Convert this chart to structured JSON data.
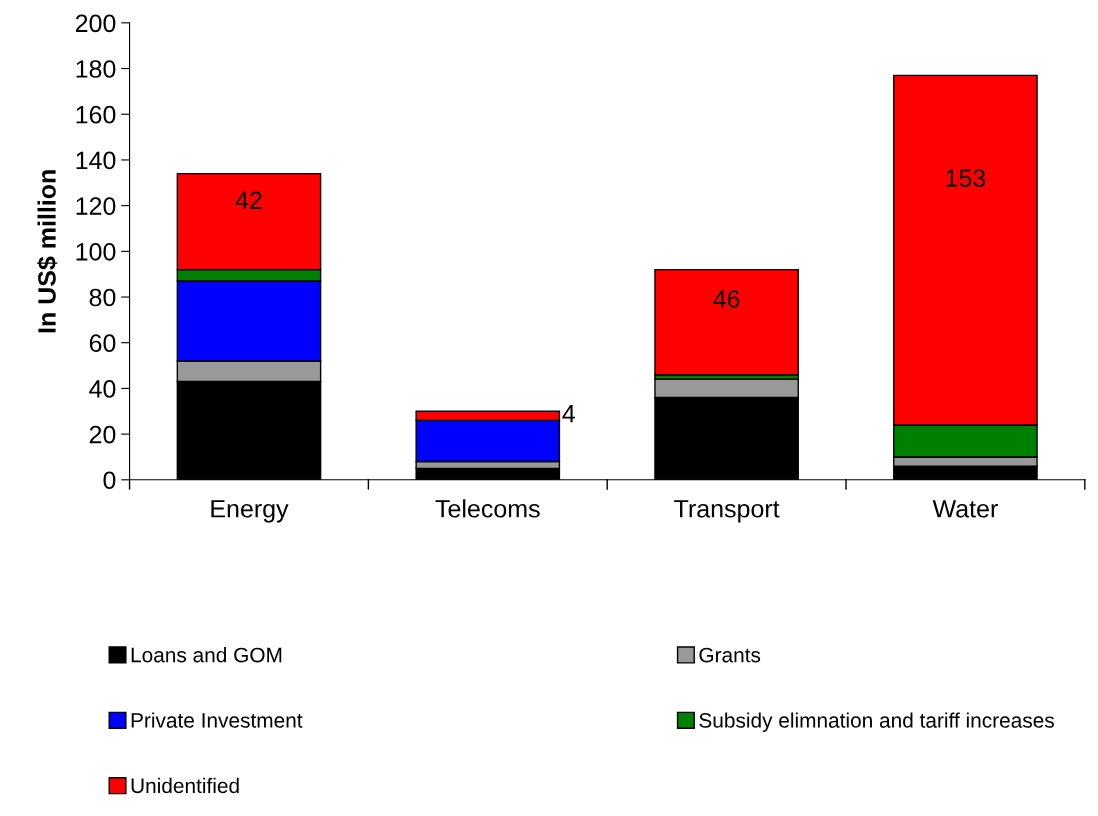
{
  "chart_data": {
    "type": "bar",
    "stacked": true,
    "ylabel": "In US$ million",
    "categories": [
      "Energy",
      "Telecoms",
      "Transport",
      "Water"
    ],
    "series": [
      {
        "name": "Loans and GOM",
        "color": "#000000",
        "values": [
          43,
          5,
          36,
          6
        ]
      },
      {
        "name": "Grants",
        "color": "#999999",
        "values": [
          9,
          3,
          8,
          4
        ]
      },
      {
        "name": "Private Investment",
        "color": "#0000ff",
        "values": [
          35,
          18,
          0,
          0
        ]
      },
      {
        "name": "Subsidy elimnation and tariff increases",
        "color": "#008000",
        "values": [
          5,
          0,
          2,
          14
        ]
      },
      {
        "name": "Unidentified",
        "color": "#ff0000",
        "values": [
          42,
          4,
          46,
          153
        ],
        "value_labels": [
          "42",
          "4",
          "46",
          "153"
        ]
      }
    ],
    "ylim": [
      0,
      200
    ],
    "yticks": [
      0,
      20,
      40,
      60,
      80,
      100,
      120,
      140,
      160,
      180,
      200
    ],
    "grid": false,
    "legend": "bottom"
  }
}
